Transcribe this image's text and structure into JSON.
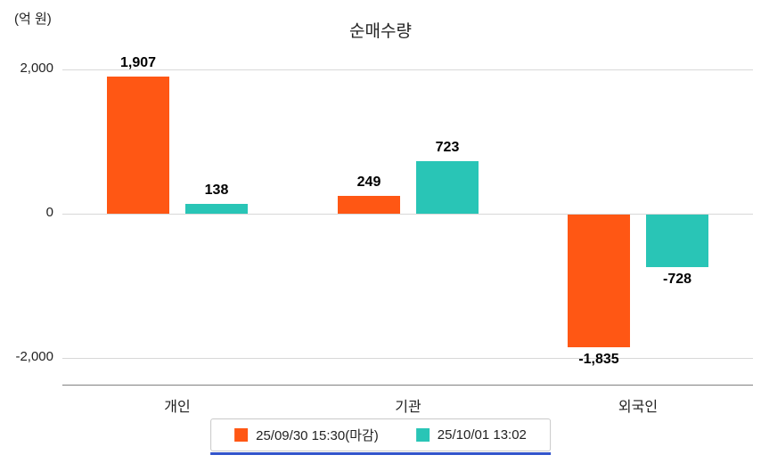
{
  "title": "순매수량",
  "y_axis_unit": "(억 원)",
  "colors": {
    "series1": "#FF5714",
    "series2": "#29C5B6",
    "grid": "#D8D8D8",
    "axis": "#808080",
    "legend_border": "#C8C8C8",
    "legend_underline": "#3355CC",
    "text": "#222222"
  },
  "chart_data": {
    "type": "bar",
    "title": "순매수량",
    "ylabel": "(억 원)",
    "xlabel": "",
    "categories": [
      "개인",
      "기관",
      "외국인"
    ],
    "series": [
      {
        "name": "25/09/30 15:30(마감)",
        "color": "#FF5714",
        "values": [
          1907,
          249,
          -1835
        ],
        "labels": [
          "1,907",
          "249",
          "-1,835"
        ]
      },
      {
        "name": "25/10/01 13:02",
        "color": "#29C5B6",
        "values": [
          138,
          723,
          -728
        ],
        "labels": [
          "138",
          "723",
          "-728"
        ]
      }
    ],
    "yticks": [
      2000,
      0,
      -2000
    ],
    "ytick_labels": [
      "2,000",
      "0",
      "-2,000"
    ],
    "ylim": [
      -2400,
      2400
    ],
    "grid": true,
    "legend_position": "bottom"
  }
}
